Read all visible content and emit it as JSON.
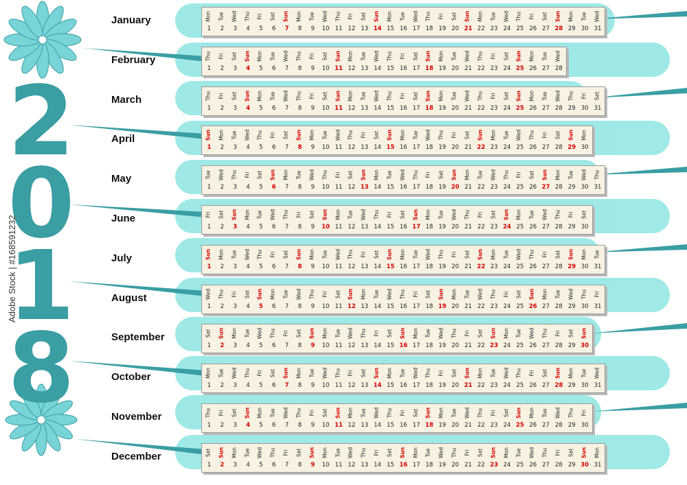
{
  "year_digits": [
    "2",
    "0",
    "1",
    "8"
  ],
  "watermark": "Adobe Stock | #168591232",
  "colors": {
    "teal": "#3a9ea3",
    "aqua": "#8ee6e2",
    "sunday": "#d40000",
    "strip": "#f7f2e2"
  },
  "months": [
    {
      "name": "January",
      "start": "Mon",
      "days": 31
    },
    {
      "name": "February",
      "start": "Thu",
      "days": 28
    },
    {
      "name": "March",
      "start": "Thu",
      "days": 31
    },
    {
      "name": "April",
      "start": "Sun",
      "days": 30
    },
    {
      "name": "May",
      "start": "Tue",
      "days": 31
    },
    {
      "name": "June",
      "start": "Fri",
      "days": 30
    },
    {
      "name": "July",
      "start": "Sun",
      "days": 31
    },
    {
      "name": "August",
      "start": "Wed",
      "days": 31
    },
    {
      "name": "September",
      "start": "Sat",
      "days": 30
    },
    {
      "name": "October",
      "start": "Mon",
      "days": 31
    },
    {
      "name": "November",
      "start": "Thu",
      "days": 30
    },
    {
      "name": "December",
      "start": "Sat",
      "days": 31
    }
  ],
  "weekdays": [
    "Mon",
    "Tue",
    "Wed",
    "Thu",
    "Fri",
    "Sat",
    "Sun"
  ]
}
